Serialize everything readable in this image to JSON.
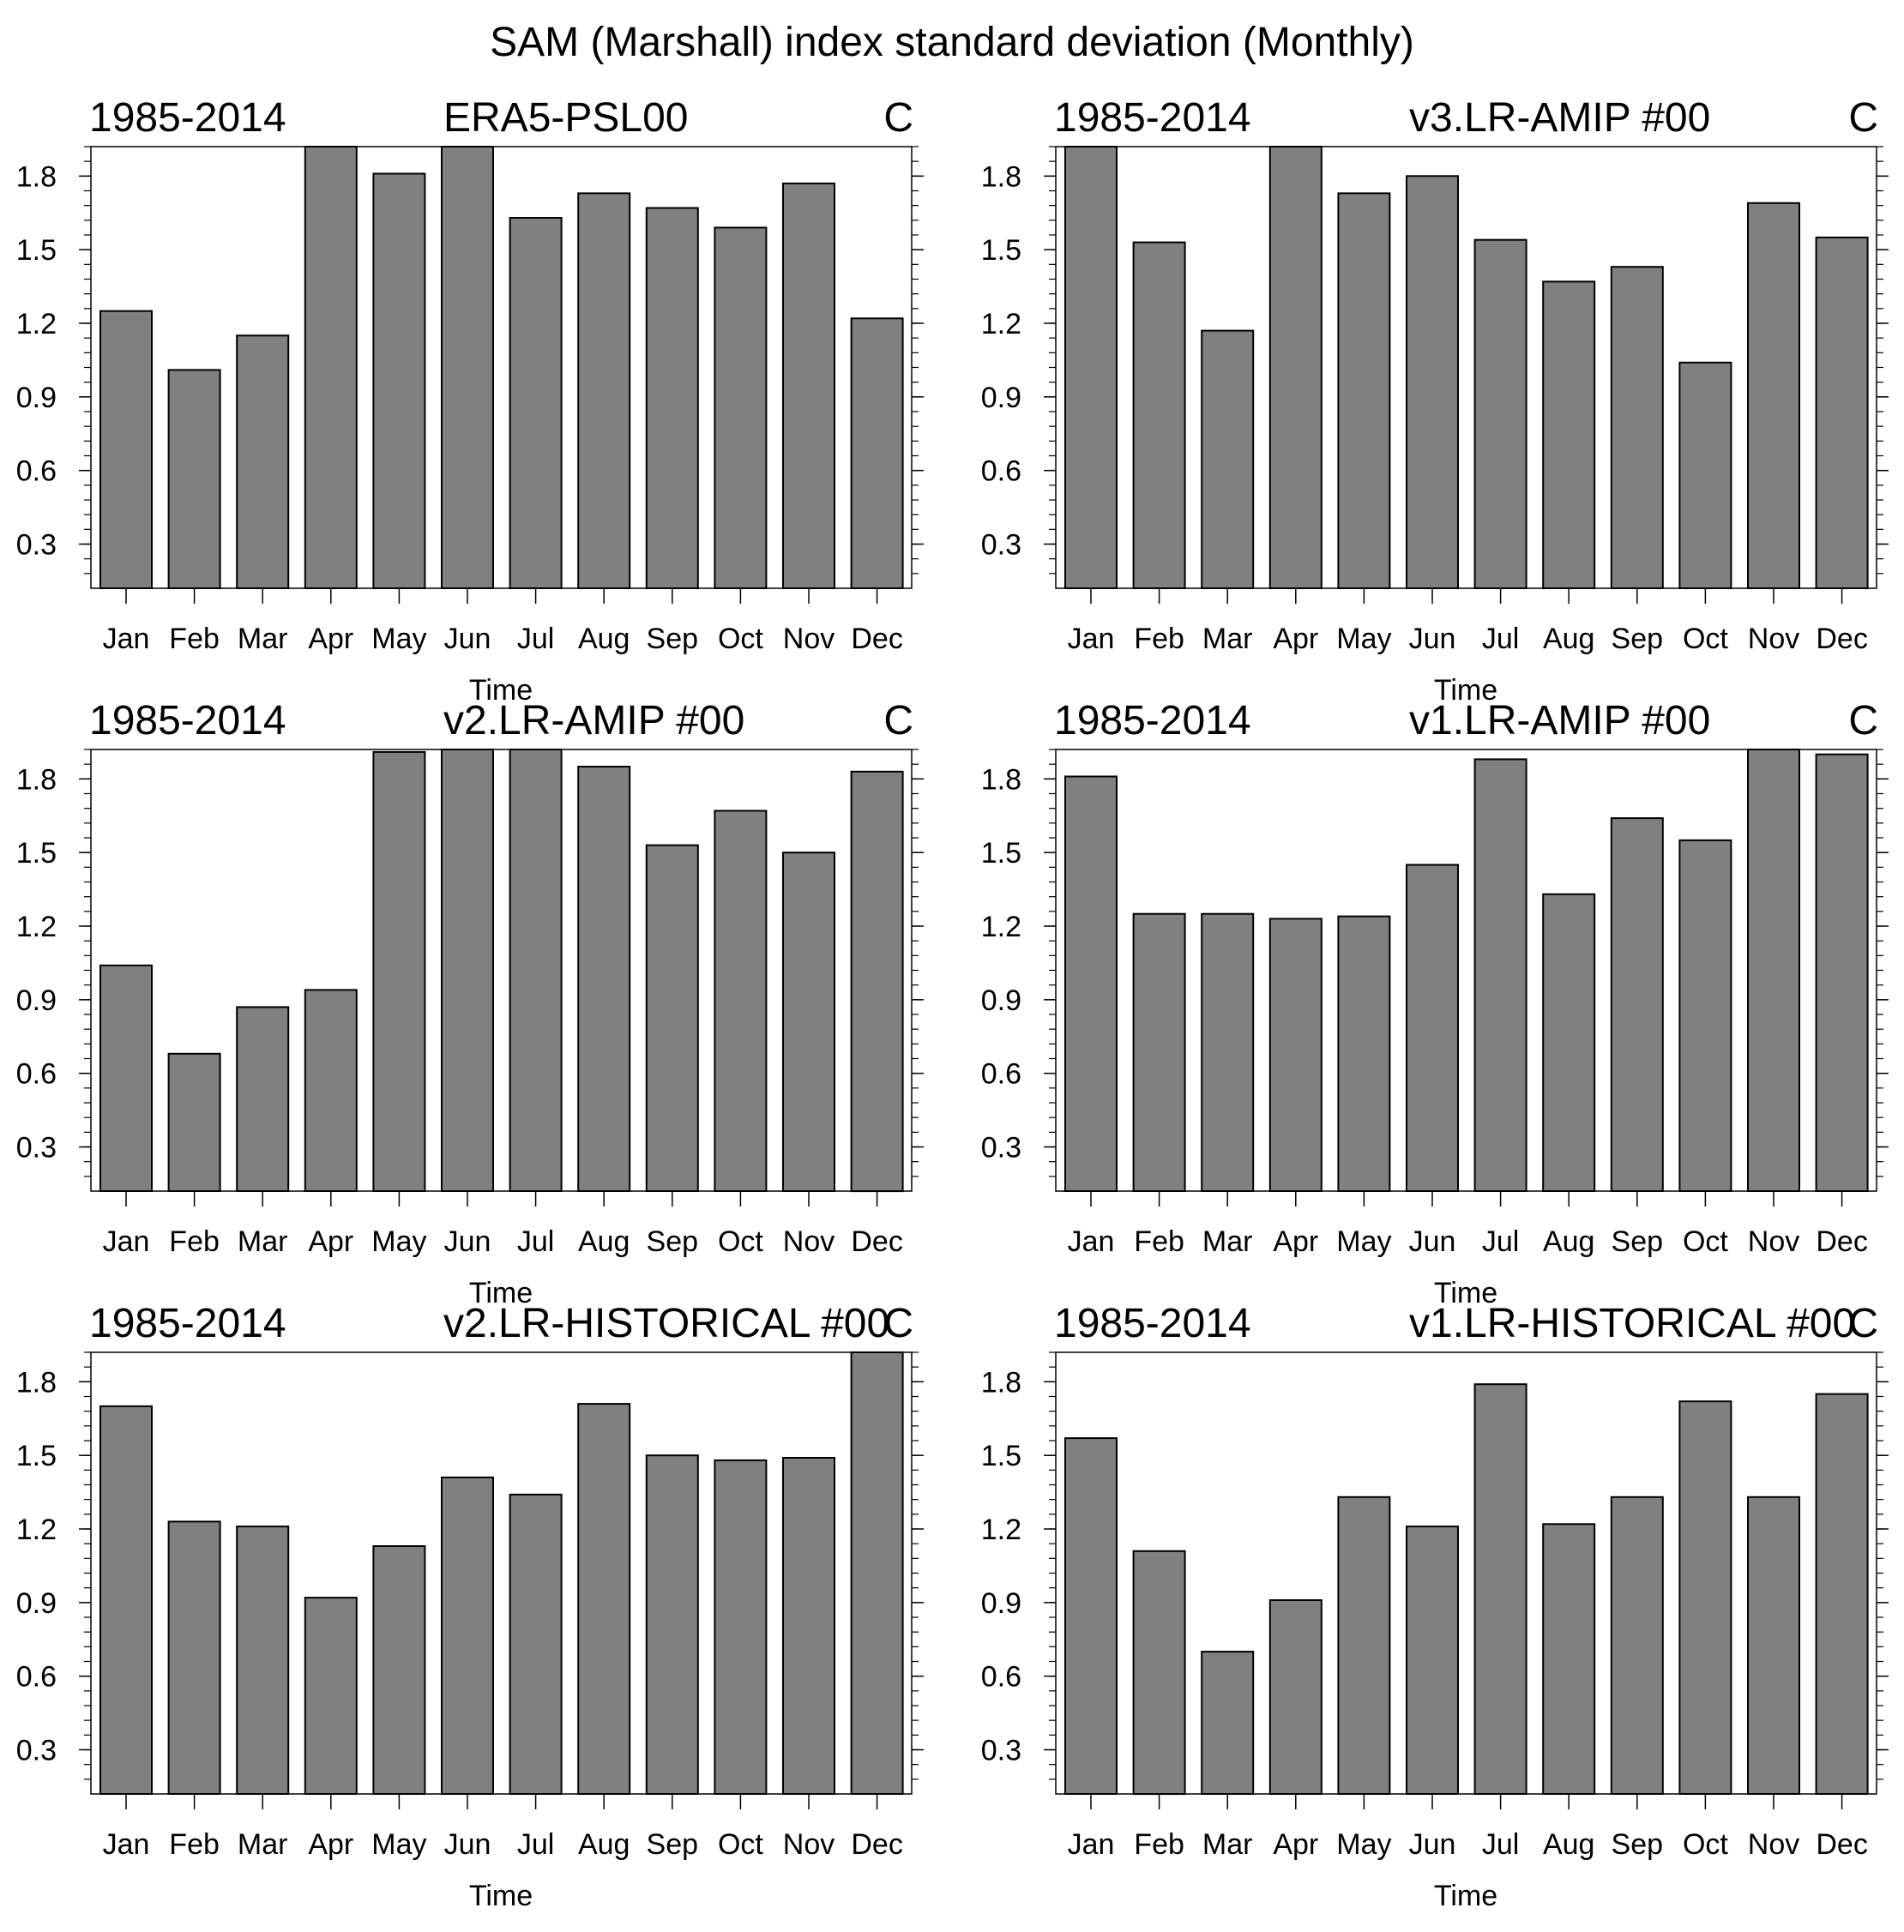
{
  "figure": {
    "title": "SAM (Marshall) index standard deviation (Monthly)"
  },
  "chart_data": [
    {
      "type": "bar",
      "left_label": "1985-2014",
      "title": "ERA5-PSL00",
      "right_label": "C",
      "xlabel": "Time",
      "ylabel": "",
      "categories": [
        "Jan",
        "Feb",
        "Mar",
        "Apr",
        "May",
        "Jun",
        "Jul",
        "Aug",
        "Sep",
        "Oct",
        "Nov",
        "Dec"
      ],
      "values": [
        1.25,
        1.01,
        1.15,
        1.92,
        1.81,
        2.0,
        1.63,
        1.73,
        1.67,
        1.59,
        1.77,
        1.22
      ],
      "ylim": [
        0.12,
        1.92
      ],
      "yticks": [
        0.3,
        0.6,
        0.9,
        1.2,
        1.5,
        1.8
      ],
      "ytick_labels": [
        "0.3",
        "0.6",
        "0.9",
        "1.2",
        "1.5",
        "1.8"
      ],
      "bar_color": "#808080"
    },
    {
      "type": "bar",
      "left_label": "1985-2014",
      "title": "v3.LR-AMIP  #00",
      "right_label": "C",
      "xlabel": "Time",
      "ylabel": "",
      "categories": [
        "Jan",
        "Feb",
        "Mar",
        "Apr",
        "May",
        "Jun",
        "Jul",
        "Aug",
        "Sep",
        "Oct",
        "Nov",
        "Dec"
      ],
      "values": [
        2.0,
        1.53,
        1.17,
        2.0,
        1.73,
        1.8,
        1.54,
        1.37,
        1.43,
        1.04,
        1.69,
        1.55
      ],
      "ylim": [
        0.12,
        1.92
      ],
      "yticks": [
        0.3,
        0.6,
        0.9,
        1.2,
        1.5,
        1.8
      ],
      "ytick_labels": [
        "0.3",
        "0.6",
        "0.9",
        "1.2",
        "1.5",
        "1.8"
      ],
      "bar_color": "#808080"
    },
    {
      "type": "bar",
      "left_label": "1985-2014",
      "title": "v2.LR-AMIP  #00",
      "right_label": "C",
      "xlabel": "Time",
      "ylabel": "",
      "categories": [
        "Jan",
        "Feb",
        "Mar",
        "Apr",
        "May",
        "Jun",
        "Jul",
        "Aug",
        "Sep",
        "Oct",
        "Nov",
        "Dec"
      ],
      "values": [
        1.04,
        0.68,
        0.87,
        0.94,
        1.91,
        2.0,
        2.0,
        1.85,
        1.53,
        1.67,
        1.5,
        1.83
      ],
      "ylim": [
        0.12,
        1.92
      ],
      "yticks": [
        0.3,
        0.6,
        0.9,
        1.2,
        1.5,
        1.8
      ],
      "ytick_labels": [
        "0.3",
        "0.6",
        "0.9",
        "1.2",
        "1.5",
        "1.8"
      ],
      "bar_color": "#808080"
    },
    {
      "type": "bar",
      "left_label": "1985-2014",
      "title": "v1.LR-AMIP  #00",
      "right_label": "C",
      "xlabel": "Time",
      "ylabel": "",
      "categories": [
        "Jan",
        "Feb",
        "Mar",
        "Apr",
        "May",
        "Jun",
        "Jul",
        "Aug",
        "Sep",
        "Oct",
        "Nov",
        "Dec"
      ],
      "values": [
        1.81,
        1.25,
        1.25,
        1.23,
        1.24,
        1.45,
        1.88,
        1.33,
        1.64,
        1.55,
        1.94,
        1.9
      ],
      "ylim": [
        0.12,
        1.92
      ],
      "yticks": [
        0.3,
        0.6,
        0.9,
        1.2,
        1.5,
        1.8
      ],
      "ytick_labels": [
        "0.3",
        "0.6",
        "0.9",
        "1.2",
        "1.5",
        "1.8"
      ],
      "bar_color": "#808080"
    },
    {
      "type": "bar",
      "left_label": "1985-2014",
      "title": "v2.LR-HISTORICAL  #00",
      "right_label": "C",
      "xlabel": "Time",
      "ylabel": "",
      "categories": [
        "Jan",
        "Feb",
        "Mar",
        "Apr",
        "May",
        "Jun",
        "Jul",
        "Aug",
        "Sep",
        "Oct",
        "Nov",
        "Dec"
      ],
      "values": [
        1.7,
        1.23,
        1.21,
        0.92,
        1.13,
        1.41,
        1.34,
        1.71,
        1.5,
        1.48,
        1.49,
        2.0
      ],
      "ylim": [
        0.12,
        1.92
      ],
      "yticks": [
        0.3,
        0.6,
        0.9,
        1.2,
        1.5,
        1.8
      ],
      "ytick_labels": [
        "0.3",
        "0.6",
        "0.9",
        "1.2",
        "1.5",
        "1.8"
      ],
      "bar_color": "#808080"
    },
    {
      "type": "bar",
      "left_label": "1985-2014",
      "title": "v1.LR-HISTORICAL  #00",
      "right_label": "C",
      "xlabel": "Time",
      "ylabel": "",
      "categories": [
        "Jan",
        "Feb",
        "Mar",
        "Apr",
        "May",
        "Jun",
        "Jul",
        "Aug",
        "Sep",
        "Oct",
        "Nov",
        "Dec"
      ],
      "values": [
        1.57,
        1.11,
        0.7,
        0.91,
        1.33,
        1.21,
        1.79,
        1.22,
        1.33,
        1.72,
        1.33,
        1.75
      ],
      "ylim": [
        0.12,
        1.92
      ],
      "yticks": [
        0.3,
        0.6,
        0.9,
        1.2,
        1.5,
        1.8
      ],
      "ytick_labels": [
        "0.3",
        "0.6",
        "0.9",
        "1.2",
        "1.5",
        "1.8"
      ],
      "bar_color": "#808080"
    }
  ]
}
